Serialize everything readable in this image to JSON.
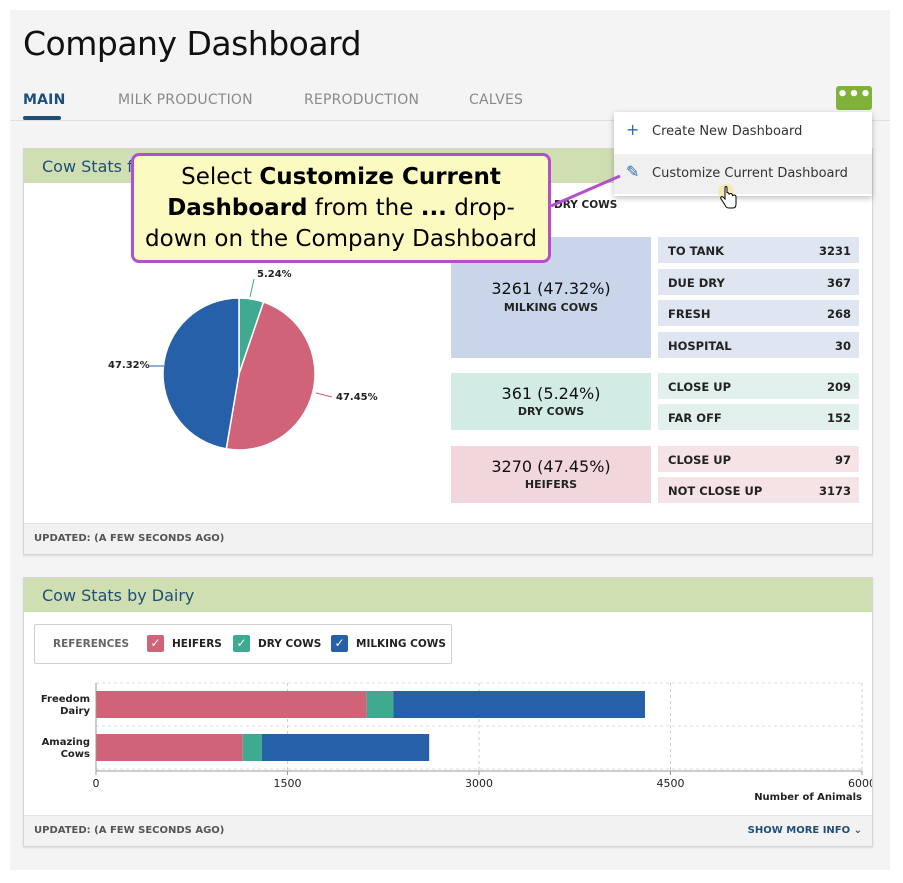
{
  "header": {
    "title": "Company Dashboard"
  },
  "tabs": [
    {
      "label": "MAIN"
    },
    {
      "label": "MILK PRODUCTION"
    },
    {
      "label": "REPRODUCTION"
    },
    {
      "label": "CALVES"
    }
  ],
  "more_button": {
    "label": "•••"
  },
  "dropdown": {
    "items": [
      {
        "label": "Create New Dashboard",
        "icon": "plus-icon"
      },
      {
        "label": "Customize Current Dashboard",
        "icon": "pencil-icon"
      }
    ]
  },
  "callout": {
    "p1": "Select ",
    "p2": "Customize Current",
    "p3": "Dashboard",
    "p4": " from the ",
    "p5": "...",
    "p6": " drop-",
    "p7": "down on the Company Dashboard"
  },
  "card1": {
    "title": "Cow Stats f",
    "legend_partial": "DRY COWS",
    "footer": "UPDATED: (A FEW SECONDS AGO)",
    "pie": {
      "slices": [
        {
          "name": "DRY COWS",
          "value": 5.24,
          "color": "#3faa8f",
          "label": "5.24%"
        },
        {
          "name": "HEIFERS",
          "value": 47.45,
          "color": "#d06377",
          "label": "47.45%"
        },
        {
          "name": "MILKING COWS",
          "value": 47.32,
          "color": "#2660a8",
          "label": "47.32%"
        }
      ]
    },
    "groups": {
      "milking": {
        "value": "3261 (47.32%)",
        "label": "MILKING COWS",
        "color": "#c9d6ea",
        "row_color": "#dfe6f2",
        "rows": [
          {
            "k": "TO TANK",
            "v": "3231"
          },
          {
            "k": "DUE DRY",
            "v": "367"
          },
          {
            "k": "FRESH",
            "v": "268"
          },
          {
            "k": "HOSPITAL",
            "v": "30"
          }
        ]
      },
      "dry": {
        "value": "361 (5.24%)",
        "label": "DRY COWS",
        "color": "#d2ebe4",
        "row_color": "#e2f1ed",
        "rows": [
          {
            "k": "CLOSE UP",
            "v": "209"
          },
          {
            "k": "FAR OFF",
            "v": "152"
          }
        ]
      },
      "heifers": {
        "value": "3270 (47.45%)",
        "label": "HEIFERS",
        "color": "#f1d7dc",
        "row_color": "#f6e3e6",
        "rows": [
          {
            "k": "CLOSE UP",
            "v": "97"
          },
          {
            "k": "NOT CLOSE UP",
            "v": "3173"
          }
        ]
      }
    }
  },
  "card2": {
    "title": "Cow Stats by Dairy",
    "references_label": "REFERENCES",
    "footer": "UPDATED: (A FEW SECONDS AGO)",
    "show_more": "SHOW MORE INFO ⌄"
  },
  "chart_data": {
    "type": "bar",
    "orientation": "horizontal",
    "stacked": true,
    "categories": [
      "Freedom Dairy",
      "Amazing Cows"
    ],
    "category_lines": [
      [
        "Freedom",
        "Dairy"
      ],
      [
        "Amazing",
        "Cows"
      ]
    ],
    "series": [
      {
        "name": "HEIFERS",
        "color": "#d06377",
        "values": [
          2120,
          1150
        ]
      },
      {
        "name": "DRY COWS",
        "color": "#3faa8f",
        "values": [
          210,
          150
        ]
      },
      {
        "name": "MILKING COWS",
        "color": "#2660a8",
        "values": [
          1970,
          1310
        ]
      }
    ],
    "xlabel": "Number of Animals",
    "xlim": [
      0,
      6000
    ],
    "xticks": [
      "0",
      "1500",
      "3000",
      "4500",
      "6000"
    ],
    "grid": true,
    "legend": "top-left"
  }
}
